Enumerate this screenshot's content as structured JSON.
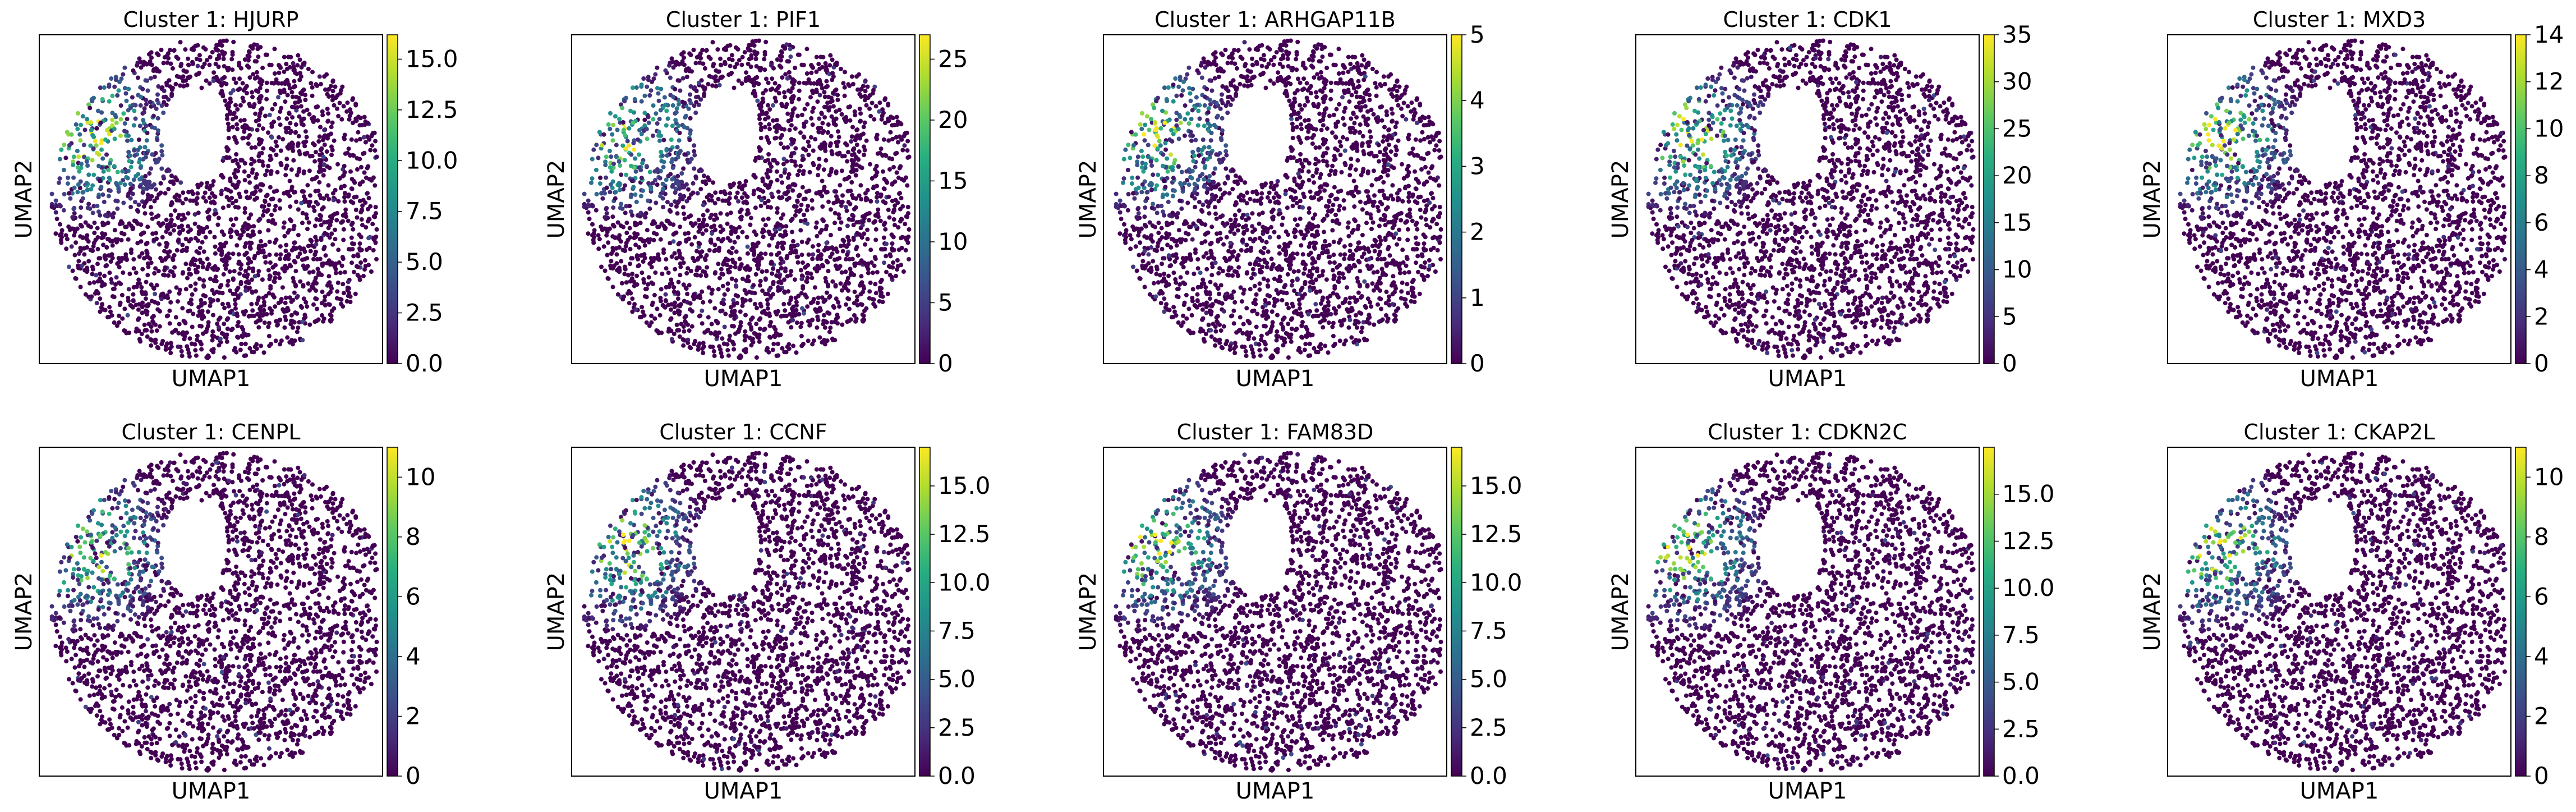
{
  "figure": {
    "colormap": "viridis",
    "point_color_low": "#440154",
    "point_color_high": "#fde725"
  },
  "chart_data": [
    {
      "type": "scatter",
      "title": "Cluster 1: HJURP",
      "xlabel": "UMAP1",
      "ylabel": "UMAP2",
      "grid": false,
      "colorbar": {
        "min": 0.0,
        "max": 16.2,
        "ticks": [
          "0.0",
          "2.5",
          "5.0",
          "7.5",
          "10.0",
          "12.5",
          "15.0"
        ],
        "tick_values": [
          0,
          2.5,
          5,
          7.5,
          10,
          12.5,
          15
        ]
      }
    },
    {
      "type": "scatter",
      "title": "Cluster 1: PIF1",
      "xlabel": "UMAP1",
      "ylabel": "UMAP2",
      "grid": false,
      "colorbar": {
        "min": 0,
        "max": 27,
        "ticks": [
          "0",
          "5",
          "10",
          "15",
          "20",
          "25"
        ],
        "tick_values": [
          0,
          5,
          10,
          15,
          20,
          25
        ]
      }
    },
    {
      "type": "scatter",
      "title": "Cluster 1: ARHGAP11B",
      "xlabel": "UMAP1",
      "ylabel": "UMAP2",
      "grid": false,
      "colorbar": {
        "min": 0,
        "max": 5,
        "ticks": [
          "0",
          "1",
          "2",
          "3",
          "4",
          "5"
        ],
        "tick_values": [
          0,
          1,
          2,
          3,
          4,
          5
        ]
      }
    },
    {
      "type": "scatter",
      "title": "Cluster 1: CDK1",
      "xlabel": "UMAP1",
      "ylabel": "UMAP2",
      "grid": false,
      "colorbar": {
        "min": 0,
        "max": 35,
        "ticks": [
          "0",
          "5",
          "10",
          "15",
          "20",
          "25",
          "30",
          "35"
        ],
        "tick_values": [
          0,
          5,
          10,
          15,
          20,
          25,
          30,
          35
        ]
      }
    },
    {
      "type": "scatter",
      "title": "Cluster 1: MXD3",
      "xlabel": "UMAP1",
      "ylabel": "UMAP2",
      "grid": false,
      "colorbar": {
        "min": 0,
        "max": 14,
        "ticks": [
          "0",
          "2",
          "4",
          "6",
          "8",
          "10",
          "12",
          "14"
        ],
        "tick_values": [
          0,
          2,
          4,
          6,
          8,
          10,
          12,
          14
        ]
      }
    },
    {
      "type": "scatter",
      "title": "Cluster 1: CENPL",
      "xlabel": "UMAP1",
      "ylabel": "UMAP2",
      "grid": false,
      "colorbar": {
        "min": 0,
        "max": 11,
        "ticks": [
          "0",
          "2",
          "4",
          "6",
          "8",
          "10"
        ],
        "tick_values": [
          0,
          2,
          4,
          6,
          8,
          10
        ]
      }
    },
    {
      "type": "scatter",
      "title": "Cluster 1: CCNF",
      "xlabel": "UMAP1",
      "ylabel": "UMAP2",
      "grid": false,
      "colorbar": {
        "min": 0.0,
        "max": 17,
        "ticks": [
          "0.0",
          "2.5",
          "5.0",
          "7.5",
          "10.0",
          "12.5",
          "15.0"
        ],
        "tick_values": [
          0,
          2.5,
          5,
          7.5,
          10,
          12.5,
          15
        ]
      }
    },
    {
      "type": "scatter",
      "title": "Cluster 1: FAM83D",
      "xlabel": "UMAP1",
      "ylabel": "UMAP2",
      "grid": false,
      "colorbar": {
        "min": 0.0,
        "max": 17,
        "ticks": [
          "0.0",
          "2.5",
          "5.0",
          "7.5",
          "10.0",
          "12.5",
          "15.0"
        ],
        "tick_values": [
          0,
          2.5,
          5,
          7.5,
          10,
          12.5,
          15
        ]
      }
    },
    {
      "type": "scatter",
      "title": "Cluster 1: CDKN2C",
      "xlabel": "UMAP1",
      "ylabel": "UMAP2",
      "grid": false,
      "colorbar": {
        "min": 0.0,
        "max": 17.5,
        "ticks": [
          "0.0",
          "2.5",
          "5.0",
          "7.5",
          "10.0",
          "12.5",
          "15.0"
        ],
        "tick_values": [
          0,
          2.5,
          5,
          7.5,
          10,
          12.5,
          15
        ]
      }
    },
    {
      "type": "scatter",
      "title": "Cluster 1: CKAP2L",
      "xlabel": "UMAP1",
      "ylabel": "UMAP2",
      "grid": false,
      "colorbar": {
        "min": 0,
        "max": 11,
        "ticks": [
          "0",
          "2",
          "4",
          "6",
          "8",
          "10"
        ],
        "tick_values": [
          0,
          2,
          4,
          6,
          8,
          10
        ]
      }
    }
  ]
}
